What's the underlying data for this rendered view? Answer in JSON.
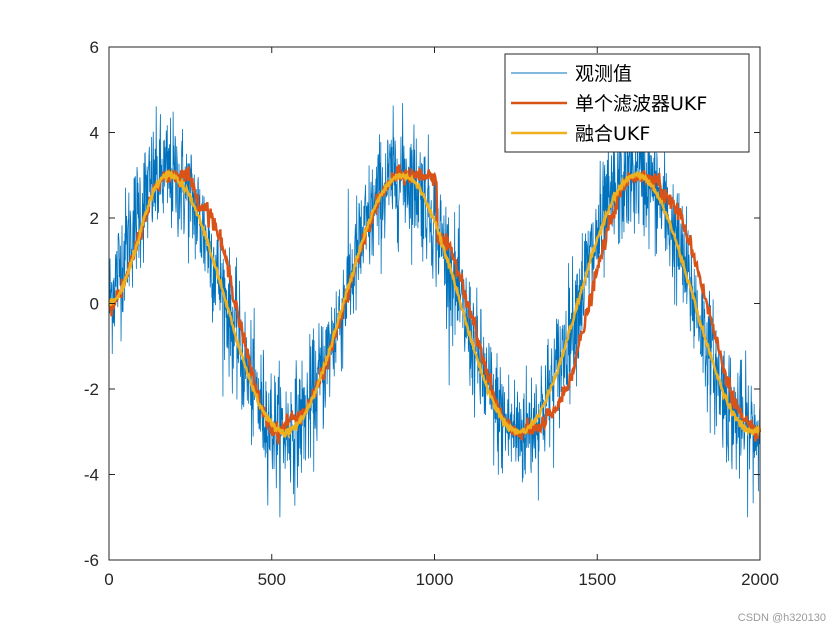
{
  "chart_data": {
    "type": "line",
    "title": "",
    "xlabel": "",
    "ylabel": "",
    "xlim": [
      0,
      2000
    ],
    "ylim": [
      -6,
      6
    ],
    "xticks": [
      0,
      500,
      1000,
      1500,
      2000
    ],
    "yticks": [
      -6,
      -4,
      -2,
      0,
      2,
      4,
      6
    ],
    "xtick_labels": [
      "0",
      "500",
      "1000",
      "1500",
      "2000"
    ],
    "ytick_labels": [
      "-6",
      "-4",
      "-2",
      "0",
      "2",
      "4",
      "6"
    ],
    "grid": false,
    "legend_position": "top-right",
    "series": [
      {
        "name": "观测值",
        "color": "#0072BD",
        "kind": "noisy_observation",
        "description_values": {
          "amplitude": 3,
          "period": 720,
          "noise_std_approx": 0.7,
          "min_observed": -5.0,
          "max_observed": 5.0
        }
      },
      {
        "name": "单个滤波器UKF",
        "color": "#D95319",
        "kind": "filtered",
        "key_points": {
          "x": [
            0,
            180,
            245,
            270,
            280,
            520,
            560,
            900,
            1005,
            1010,
            1250,
            1340,
            1345,
            1620,
            1690,
            1700,
            1990,
            2000
          ],
          "y": [
            0,
            3,
            3,
            2.5,
            2.3,
            -3,
            -2.7,
            3,
            3,
            1.5,
            -3,
            -2.9,
            -2.6,
            3,
            2.9,
            2.5,
            -3,
            -2.95
          ]
        }
      },
      {
        "name": "融合UKF",
        "color": "#EDB120",
        "kind": "fused",
        "key_points": {
          "x": [
            0,
            180,
            540,
            900,
            1260,
            1620,
            1980,
            2000
          ],
          "y": [
            0,
            3,
            -3,
            3,
            -3,
            3,
            -3,
            -2.95
          ]
        }
      }
    ]
  },
  "watermark": "CSDN @h320130"
}
